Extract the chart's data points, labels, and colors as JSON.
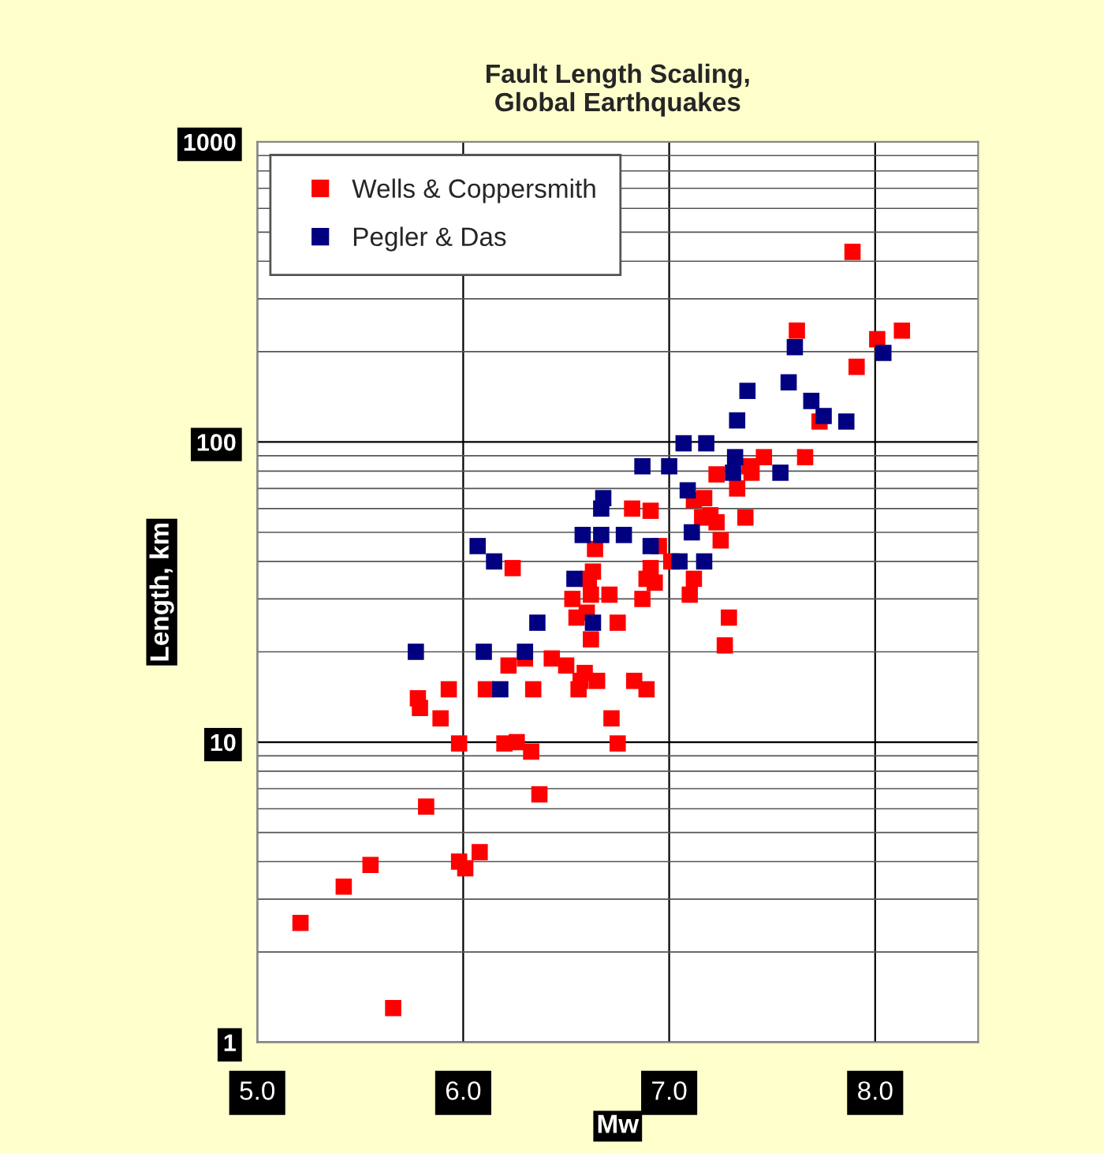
{
  "chart_data": {
    "type": "scatter",
    "title": "Fault Length Scaling,\nGlobal Earthquakes",
    "xlabel": "Mw",
    "ylabel": "Length, km",
    "log": "y",
    "grid": true,
    "legend": "top left",
    "marker": "square",
    "xlim": [
      5.0,
      8.5
    ],
    "xticks": [
      {
        "value": 5.0,
        "label": "5.0"
      },
      {
        "value": 6.0,
        "label": "6.0"
      },
      {
        "value": 7.0,
        "label": "7.0"
      },
      {
        "value": 8.0,
        "label": "8.0"
      }
    ],
    "ylim": [
      1,
      1000
    ],
    "yticks": [
      1,
      10,
      100,
      1000
    ],
    "series": [
      {
        "name": "Wells & Coppersmith",
        "color": "#ff0000",
        "x": [
          5.21,
          5.42,
          5.55,
          5.66,
          5.82,
          5.98,
          6.01,
          6.08,
          6.37,
          6.33,
          5.78,
          5.79,
          5.89,
          5.93,
          5.98,
          6.11,
          6.2,
          6.26,
          6.34,
          6.22,
          6.3,
          6.43,
          6.5,
          6.59,
          6.57,
          6.65,
          6.56,
          6.72,
          6.75,
          6.62,
          6.75,
          6.55,
          6.6,
          6.53,
          6.62,
          6.71,
          6.61,
          6.63,
          6.64,
          6.24,
          6.82,
          6.91,
          6.95,
          6.91,
          6.89,
          6.93,
          6.87,
          6.83,
          6.89,
          7.01,
          7.12,
          7.1,
          7.29,
          7.27,
          7.25,
          7.37,
          7.23,
          7.2,
          7.16,
          7.33,
          7.12,
          7.17,
          7.23,
          7.4,
          7.89,
          7.62,
          8.01,
          8.13,
          7.91,
          7.73,
          7.66,
          7.46,
          7.39
        ],
        "values": [
          2.5,
          3.3,
          3.9,
          1.3,
          6.1,
          4.0,
          3.8,
          4.3,
          6.7,
          9.3,
          14,
          13,
          12,
          15,
          9.9,
          15,
          9.9,
          10,
          15,
          18,
          19,
          19,
          18,
          17,
          16,
          16,
          15,
          12,
          9.9,
          22,
          25,
          26,
          27,
          30,
          31,
          31,
          35,
          37,
          44,
          38,
          60,
          59,
          45,
          38,
          35,
          34,
          30,
          16,
          15,
          40,
          35,
          31,
          26,
          21,
          47,
          56,
          54,
          57,
          56,
          70,
          64,
          65,
          78,
          79,
          430,
          235,
          220,
          235,
          178,
          117,
          89,
          89,
          83
        ]
      },
      {
        "name": "Pegler & Das",
        "color": "#000080",
        "x": [
          5.77,
          6.1,
          6.3,
          6.18,
          6.07,
          6.15,
          6.36,
          6.54,
          6.63,
          6.58,
          6.67,
          6.78,
          6.67,
          6.68,
          6.91,
          7.05,
          7.17,
          7.11,
          7.09,
          7.31,
          7.54,
          7.61,
          8.04,
          7.58,
          7.38,
          7.69,
          7.75,
          7.86,
          7.33,
          7.07,
          7.18,
          6.87,
          7.0,
          7.32
        ],
        "values": [
          20,
          20,
          20,
          15,
          45,
          40,
          25,
          35,
          25,
          49,
          49,
          49,
          60,
          65,
          45,
          40,
          40,
          50,
          69,
          79,
          79,
          207,
          198,
          158,
          148,
          137,
          122,
          117,
          118,
          99,
          99,
          83,
          83,
          89
        ]
      }
    ]
  }
}
